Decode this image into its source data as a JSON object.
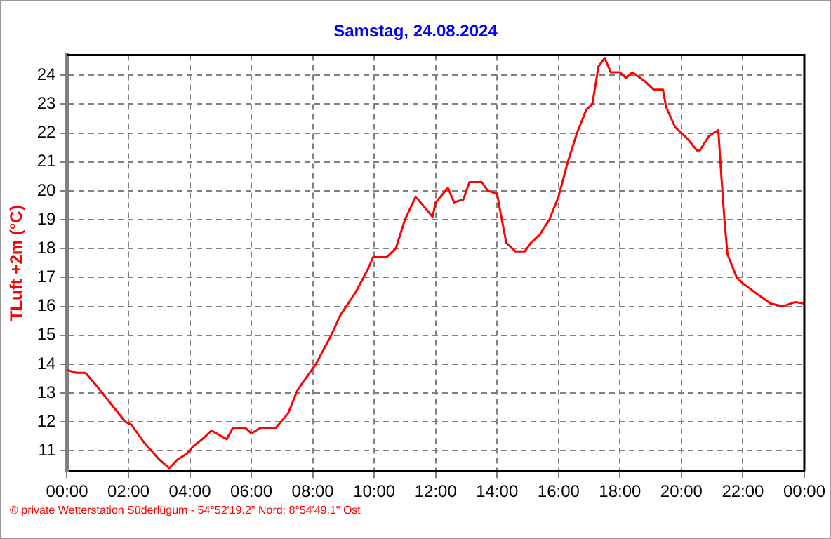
{
  "chart_data": {
    "type": "line",
    "title": "Samstag, 24.08.2024",
    "ylabel": "TLuft +2m (°C)",
    "annotations": [
      "© private Wetterstation Süderlügum - 54°52'19.2\" Nord; 8°54'49.1\" Ost"
    ],
    "xlim": [
      0,
      24
    ],
    "xticks": [
      {
        "value": 0,
        "label": "00:00"
      },
      {
        "value": 2,
        "label": "02:00"
      },
      {
        "value": 4,
        "label": "04:00"
      },
      {
        "value": 6,
        "label": "06:00"
      },
      {
        "value": 8,
        "label": "08:00"
      },
      {
        "value": 10,
        "label": "10:00"
      },
      {
        "value": 12,
        "label": "12:00"
      },
      {
        "value": 14,
        "label": "14:00"
      },
      {
        "value": 16,
        "label": "16:00"
      },
      {
        "value": 18,
        "label": "18:00"
      },
      {
        "value": 20,
        "label": "20:00"
      },
      {
        "value": 22,
        "label": "22:00"
      },
      {
        "value": 24,
        "label": "00:00"
      }
    ],
    "ylim": [
      10.3,
      24.7
    ],
    "yticks": [
      11,
      12,
      13,
      14,
      15,
      16,
      17,
      18,
      19,
      20,
      21,
      22,
      23,
      24
    ],
    "grid": true,
    "marker": "none",
    "line_style": "solid",
    "series": [
      {
        "color": "#ff0000",
        "x": [
          0,
          0.3,
          0.6,
          1.0,
          1.3,
          1.6,
          1.9,
          2.1,
          2.5,
          3.0,
          3.33,
          3.6,
          3.9,
          4.1,
          4.4,
          4.7,
          5.2,
          5.4,
          5.8,
          6.0,
          6.3,
          6.8,
          7.2,
          7.5,
          8.1,
          8.6,
          8.9,
          9.4,
          9.8,
          9.96,
          10.4,
          10.7,
          11.0,
          11.35,
          11.9,
          12.0,
          12.4,
          12.6,
          12.9,
          13.1,
          13.5,
          13.7,
          14.0,
          14.1,
          14.3,
          14.6,
          14.9,
          15.1,
          15.4,
          15.7,
          16.0,
          16.3,
          16.6,
          16.9,
          17.1,
          17.3,
          17.5,
          17.7,
          18.0,
          18.2,
          18.4,
          18.8,
          19.1,
          19.4,
          19.5,
          19.8,
          20.2,
          20.5,
          20.6,
          20.9,
          21.2,
          21.3,
          21.4,
          21.5,
          21.8,
          22.0,
          22.5,
          22.9,
          23.3,
          23.7,
          24.0
        ],
        "values": [
          13.8,
          13.7,
          13.7,
          13.2,
          12.8,
          12.4,
          12.0,
          11.9,
          11.3,
          10.7,
          10.4,
          10.7,
          10.9,
          11.15,
          11.4,
          11.7,
          11.4,
          11.8,
          11.8,
          11.6,
          11.8,
          11.8,
          12.3,
          13.1,
          14.0,
          15.0,
          15.7,
          16.5,
          17.3,
          17.7,
          17.7,
          18.0,
          19.0,
          19.8,
          19.1,
          19.6,
          20.1,
          19.6,
          19.7,
          20.3,
          20.3,
          20.0,
          19.9,
          19.3,
          18.2,
          17.9,
          17.9,
          18.2,
          18.5,
          19.0,
          19.8,
          21.0,
          22.0,
          22.8,
          23.0,
          24.3,
          24.6,
          24.1,
          24.1,
          23.9,
          24.1,
          23.8,
          23.5,
          23.5,
          22.9,
          22.2,
          21.8,
          21.4,
          21.4,
          21.9,
          22.1,
          20.5,
          19.0,
          17.8,
          17.0,
          16.8,
          16.4,
          16.1,
          16.0,
          16.15,
          16.1
        ]
      }
    ]
  }
}
